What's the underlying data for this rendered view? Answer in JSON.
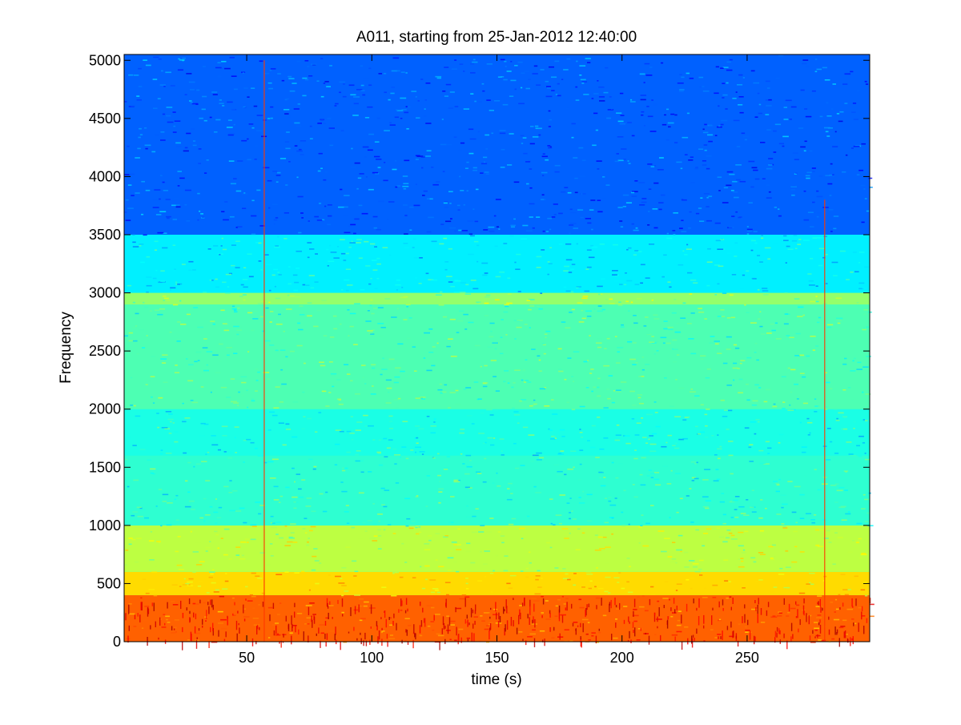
{
  "chart_data": {
    "type": "heatmap",
    "title": "A011, starting from 25-Jan-2012 12:40:00",
    "xlabel": "time (s)",
    "ylabel": "Frequency",
    "xlim": [
      1,
      299
    ],
    "ylim": [
      0,
      5050
    ],
    "xticks": [
      50,
      100,
      150,
      200,
      250
    ],
    "yticks": [
      0,
      500,
      1000,
      1500,
      2000,
      2500,
      3000,
      3500,
      4000,
      4500,
      5000
    ],
    "colormap": "jet",
    "colors": {
      "high": "#ff1a00",
      "mid_high": "#ff8c00",
      "mid": "#ffff00",
      "low_mid": "#b7ff48",
      "low": "#34ffc8",
      "min": "#00b0ff"
    },
    "frequency_bands": [
      {
        "from": 0,
        "to": 400,
        "intensity": 0.78
      },
      {
        "from": 400,
        "to": 600,
        "intensity": 0.66
      },
      {
        "from": 600,
        "to": 1000,
        "intensity": 0.56
      },
      {
        "from": 1000,
        "to": 1600,
        "intensity": 0.42
      },
      {
        "from": 1600,
        "to": 2000,
        "intensity": 0.4
      },
      {
        "from": 2000,
        "to": 2900,
        "intensity": 0.45
      },
      {
        "from": 2900,
        "to": 3000,
        "intensity": 0.52
      },
      {
        "from": 3000,
        "to": 3500,
        "intensity": 0.36
      },
      {
        "from": 3500,
        "to": 5050,
        "intensity": 0.22
      }
    ],
    "transients": [
      {
        "time": 57,
        "max_frequency": 5000
      },
      {
        "time": 281,
        "max_frequency": 3800
      }
    ],
    "grid": false,
    "legend": "none"
  }
}
